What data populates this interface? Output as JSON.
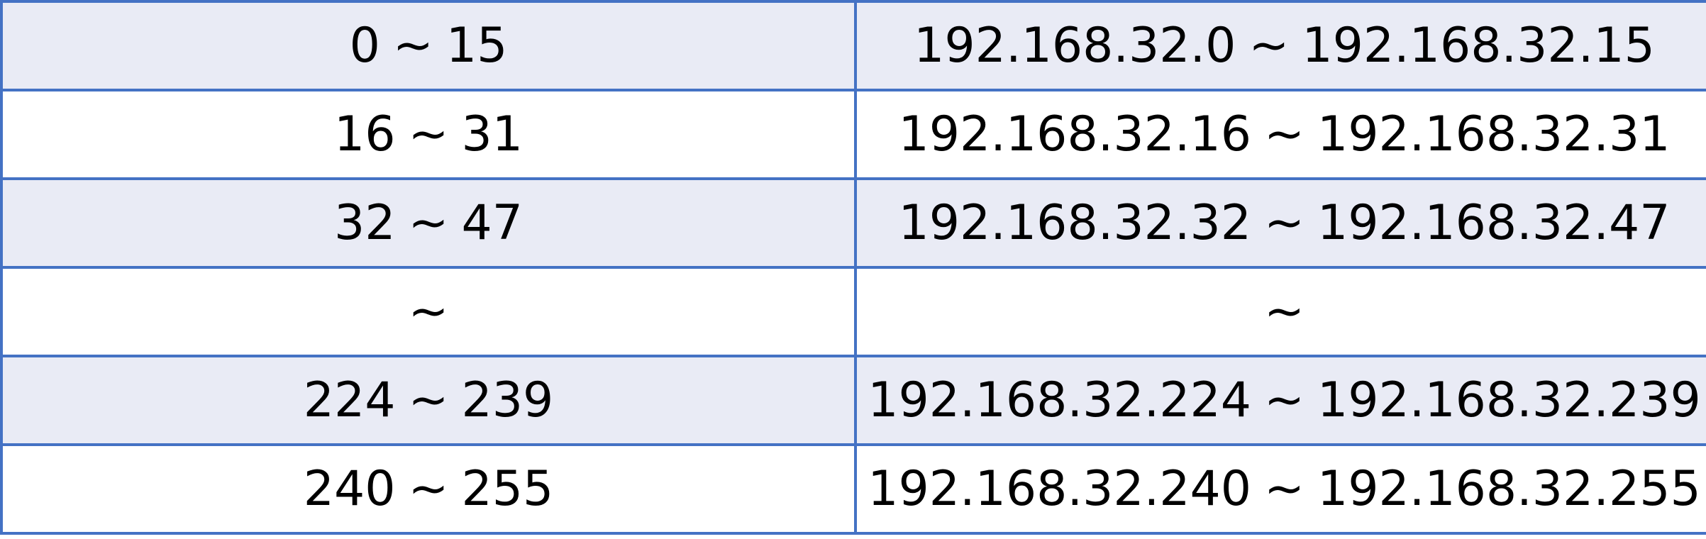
{
  "table": {
    "rows": [
      {
        "range_start": "0",
        "range_sep": "~",
        "range_end": "15",
        "ip_start": "192.168.32.0",
        "ip_sep": "~",
        "ip_end": "192.168.32.15",
        "shade": "#e9ebf5"
      },
      {
        "range_start": "16",
        "range_sep": "~",
        "range_end": "31",
        "ip_start": "192.168.32.16",
        "ip_sep": "~",
        "ip_end": "192.168.32.31",
        "shade": "#ffffff"
      },
      {
        "range_start": "32",
        "range_sep": "~",
        "range_end": "47",
        "ip_start": "192.168.32.32",
        "ip_sep": "~",
        "ip_end": "192.168.32.47",
        "shade": "#e9ebf5"
      },
      {
        "range_start": "",
        "range_sep": "~",
        "range_end": "",
        "ip_start": "",
        "ip_sep": "~",
        "ip_end": "",
        "shade": "#ffffff"
      },
      {
        "range_start": "224",
        "range_sep": "~",
        "range_end": "239",
        "ip_start": "192.168.32.224",
        "ip_sep": "~",
        "ip_end": "192.168.32.239",
        "shade": "#e9ebf5"
      },
      {
        "range_start": "240",
        "range_sep": "~",
        "range_end": "255",
        "ip_start": "192.168.32.240",
        "ip_sep": "~",
        "ip_end": "192.168.32.255",
        "shade": "#ffffff"
      }
    ],
    "border_color": "#4472c4"
  }
}
